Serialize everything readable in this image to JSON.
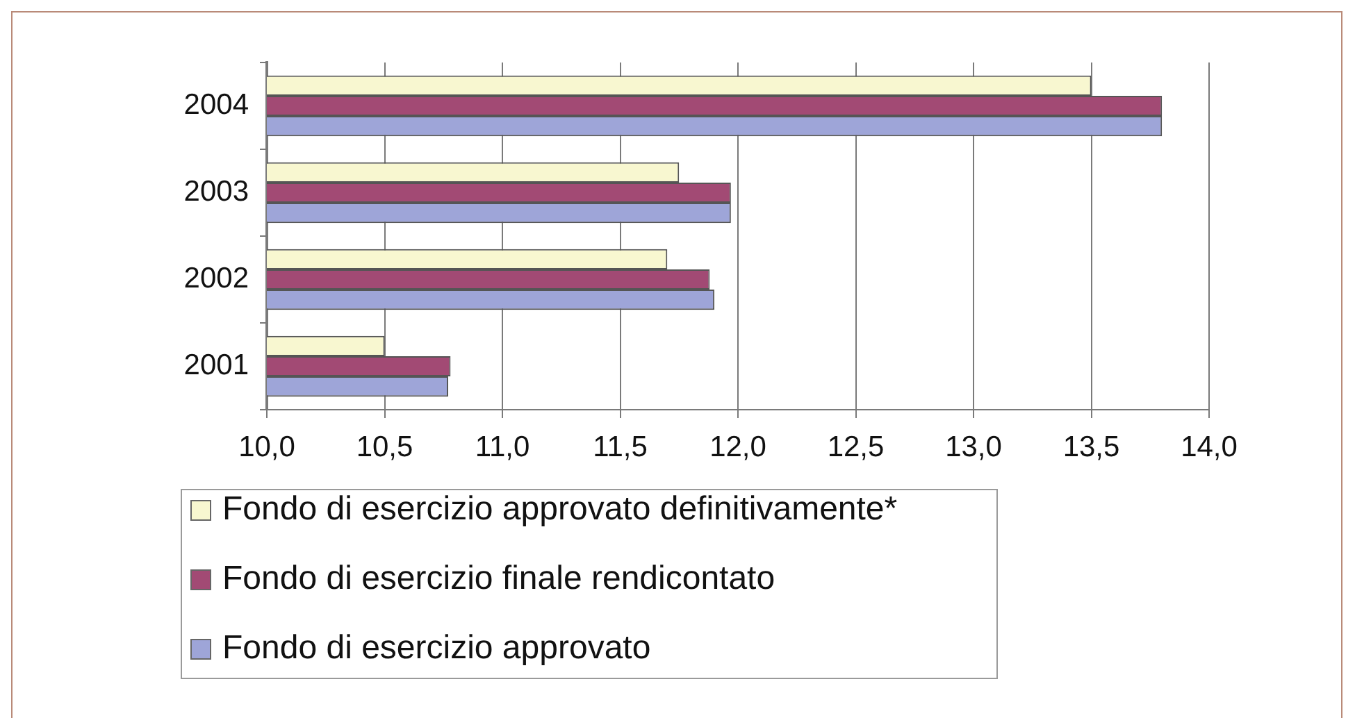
{
  "chart_data": {
    "type": "bar",
    "orientation": "horizontal",
    "categories": [
      "2004",
      "2003",
      "2002",
      "2001"
    ],
    "series": [
      {
        "name": "Fondo di esercizio approvato definitivamente*",
        "color": "#f8f7d0",
        "values": [
          13.5,
          11.75,
          11.7,
          10.5
        ]
      },
      {
        "name": "Fondo di esercizio finale rendicontato",
        "color": "#a24a74",
        "values": [
          13.8,
          11.97,
          11.88,
          10.78
        ]
      },
      {
        "name": "Fondo di esercizio approvato",
        "color": "#9ea5d8",
        "values": [
          13.8,
          11.97,
          11.9,
          10.77
        ]
      }
    ],
    "xlim": [
      10,
      14
    ],
    "xticks": [
      {
        "value": 10,
        "label": "10,0"
      },
      {
        "value": 10.5,
        "label": "10,5"
      },
      {
        "value": 11,
        "label": "11,0"
      },
      {
        "value": 11.5,
        "label": "11,5"
      },
      {
        "value": 12,
        "label": "12,0"
      },
      {
        "value": 12.5,
        "label": "12,5"
      },
      {
        "value": 13,
        "label": "13,0"
      },
      {
        "value": 13.5,
        "label": "13,5"
      },
      {
        "value": 14,
        "label": "14,0"
      }
    ],
    "grid": "x",
    "legend": "bottom left"
  }
}
